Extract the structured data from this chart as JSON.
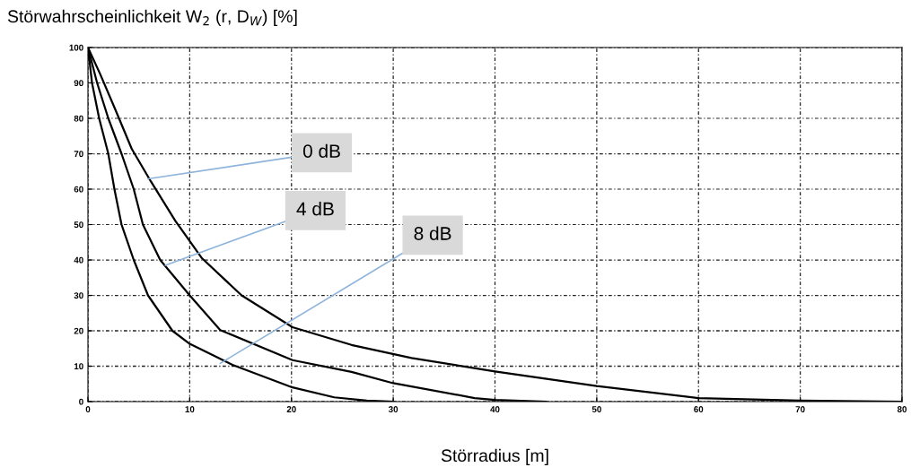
{
  "chart_data": {
    "type": "line",
    "ylabel": "Störwahrscheinlichkeit W$_{2}$ (r, D$_{W}$) [%]",
    "xlabel": "Störradius [m]",
    "xlim": [
      0,
      80
    ],
    "xticks": [
      0,
      10,
      20,
      30,
      40,
      50,
      60,
      70,
      80
    ],
    "ylim": [
      0,
      100
    ],
    "yticks": [
      0,
      10,
      20,
      30,
      40,
      50,
      60,
      70,
      80,
      90,
      100
    ],
    "grid": true,
    "line_style": "solid",
    "marker": "none",
    "series": [
      {
        "color": "#000000",
        "x": [
          0,
          1.2,
          2.7,
          4.3,
          6.2,
          8.6,
          11.2,
          15.1,
          20.1,
          25.9,
          31.8,
          40,
          50,
          60,
          70,
          80
        ],
        "values": [
          100,
          92.5,
          82.4,
          71.4,
          62.1,
          51,
          40.5,
          30,
          21,
          16,
          12.3,
          8.5,
          4.4,
          1,
          0.3,
          0
        ]
      },
      {
        "color": "#000000",
        "x": [
          0,
          0.9,
          2.0,
          3.3,
          4.5,
          5.4,
          7.1,
          10,
          13,
          20.1,
          25.9,
          30,
          38,
          40,
          45
        ],
        "values": [
          100,
          90,
          80,
          70,
          60,
          50,
          40,
          30,
          20.2,
          11.7,
          8.4,
          5.2,
          1,
          0.5,
          0
        ]
      },
      {
        "color": "#000000",
        "x": [
          0,
          0.4,
          1.1,
          2.0,
          2.6,
          3.3,
          4.5,
          5.9,
          8.3,
          10,
          14.2,
          20.1,
          24.2,
          27.4,
          30
        ],
        "values": [
          100,
          90,
          80,
          70,
          60,
          50,
          40,
          30,
          20,
          16.3,
          10.4,
          4,
          1.2,
          0.3,
          0
        ]
      }
    ],
    "annotations": [
      {
        "text": "0 dB",
        "x": 5.9,
        "y": 62.9
      },
      {
        "text": "4 dB",
        "x": 7.6,
        "y": 38.5
      },
      {
        "text": "8 dB",
        "x": 13,
        "y": 10.8
      }
    ]
  }
}
